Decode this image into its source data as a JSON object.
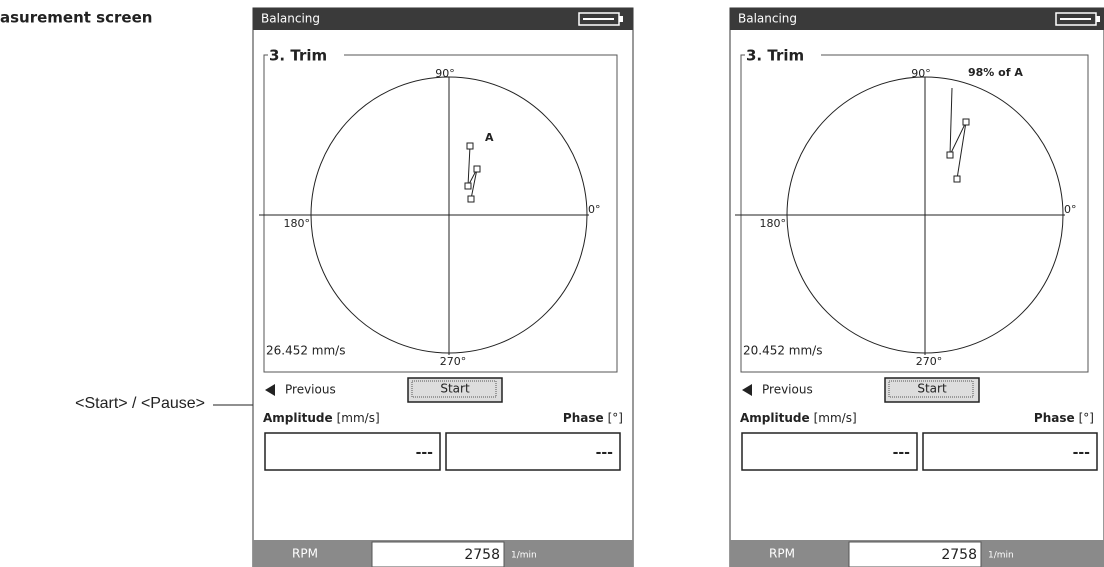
{
  "caption": "asurement screen",
  "callout": "<Start> / <Pause>",
  "screens": [
    {
      "header": "Balancing",
      "group": "3. Trim",
      "angles": {
        "top": "90°",
        "right": "0°",
        "left": "180°",
        "bottom": "270°"
      },
      "scale": "26.452 mm/s",
      "point_label": "A",
      "previous": "Previous",
      "start": "Start",
      "amplitude_label": "Amplitude",
      "amplitude_unit": "[mm/s]",
      "phase_label": "Phase",
      "phase_unit": "[°]",
      "amplitude_value": "---",
      "phase_value": "---",
      "rpm_label": "RPM",
      "rpm_value": "2758",
      "rpm_unit": "1/min"
    },
    {
      "header": "Balancing",
      "group": "3. Trim",
      "angles": {
        "top": "90°",
        "right": "0°",
        "left": "180°",
        "bottom": "270°"
      },
      "scale": "20.452 mm/s",
      "point_label": "98% of A",
      "previous": "Previous",
      "start": "Start",
      "amplitude_label": "Amplitude",
      "amplitude_unit": "[mm/s]",
      "phase_label": "Phase",
      "phase_unit": "[°]",
      "amplitude_value": "---",
      "phase_value": "---",
      "rpm_label": "RPM",
      "rpm_value": "2758",
      "rpm_unit": "1/min"
    }
  ]
}
